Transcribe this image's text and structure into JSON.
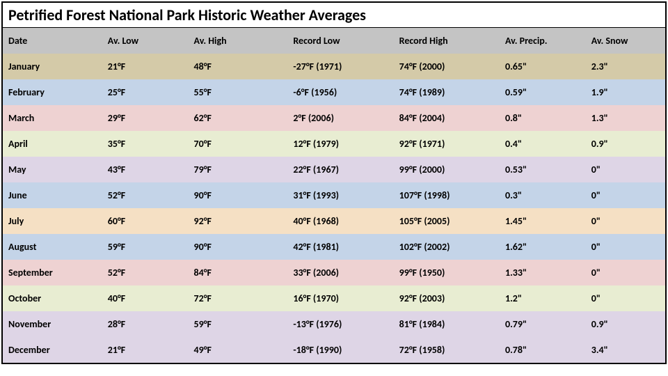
{
  "title": "Petrified Forest National Park Historic Weather Averages",
  "headers": {
    "date": "Date",
    "low": "Av. Low",
    "high": "Av. High",
    "reclow": "Record Low",
    "rechigh": "Record High",
    "precip": "Av. Precip.",
    "snow": "Av. Snow"
  },
  "header_bg": "#c4c4c4",
  "row_colors": [
    "#d4caa8",
    "#c4d4e8",
    "#eed2d2",
    "#e8edd2",
    "#ded5e6",
    "#c4d4e8",
    "#f5e0c4",
    "#c4d4e8",
    "#eed2d2",
    "#e8edd2",
    "#ded5e6",
    "#ded5e6"
  ],
  "rows": [
    {
      "date": "January",
      "low": "21°F",
      "high": "48°F",
      "reclow": "-27°F (1971)",
      "rechigh": "74°F (2000)",
      "precip": "0.65\"",
      "snow": "2.3\""
    },
    {
      "date": "February",
      "low": "25°F",
      "high": "55°F",
      "reclow": "-6°F (1956)",
      "rechigh": "74°F (1989)",
      "precip": "0.59\"",
      "snow": "1.9\""
    },
    {
      "date": "March",
      "low": "29°F",
      "high": "62°F",
      "reclow": "2°F (2006)",
      "rechigh": "84°F (2004)",
      "precip": "0.8\"",
      "snow": "1.3\""
    },
    {
      "date": "April",
      "low": "35°F",
      "high": "70°F",
      "reclow": "12°F (1979)",
      "rechigh": "92°F (1971)",
      "precip": "0.4\"",
      "snow": "0.9\""
    },
    {
      "date": "May",
      "low": "43°F",
      "high": "79°F",
      "reclow": "22°F (1967)",
      "rechigh": "99°F (2000)",
      "precip": "0.53\"",
      "snow": "0\""
    },
    {
      "date": "June",
      "low": "52°F",
      "high": "90°F",
      "reclow": "31°F (1993)",
      "rechigh": "107°F (1998)",
      "precip": "0.3\"",
      "snow": "0\""
    },
    {
      "date": "July",
      "low": "60°F",
      "high": "92°F",
      "reclow": "40°F (1968)",
      "rechigh": "105°F (2005)",
      "precip": "1.45\"",
      "snow": "0\""
    },
    {
      "date": "August",
      "low": "59°F",
      "high": "90°F",
      "reclow": "42°F (1981)",
      "rechigh": "102°F (2002)",
      "precip": "1.62\"",
      "snow": "0\""
    },
    {
      "date": "September",
      "low": "52°F",
      "high": "84°F",
      "reclow": "33°F (2006)",
      "rechigh": "99°F (1950)",
      "precip": "1.33\"",
      "snow": "0\""
    },
    {
      "date": "October",
      "low": "40°F",
      "high": "72°F",
      "reclow": "16°F (1970)",
      "rechigh": "92°F (2003)",
      "precip": "1.2\"",
      "snow": "0\""
    },
    {
      "date": "November",
      "low": "28°F",
      "high": "59°F",
      "reclow": "-13°F (1976)",
      "rechigh": "81°F (1984)",
      "precip": "0.79\"",
      "snow": "0.9\""
    },
    {
      "date": "December",
      "low": "21°F",
      "high": "49°F",
      "reclow": "-18°F (1990)",
      "rechigh": "72°F (1958)",
      "precip": "0.78\"",
      "snow": "3.4\""
    }
  ]
}
